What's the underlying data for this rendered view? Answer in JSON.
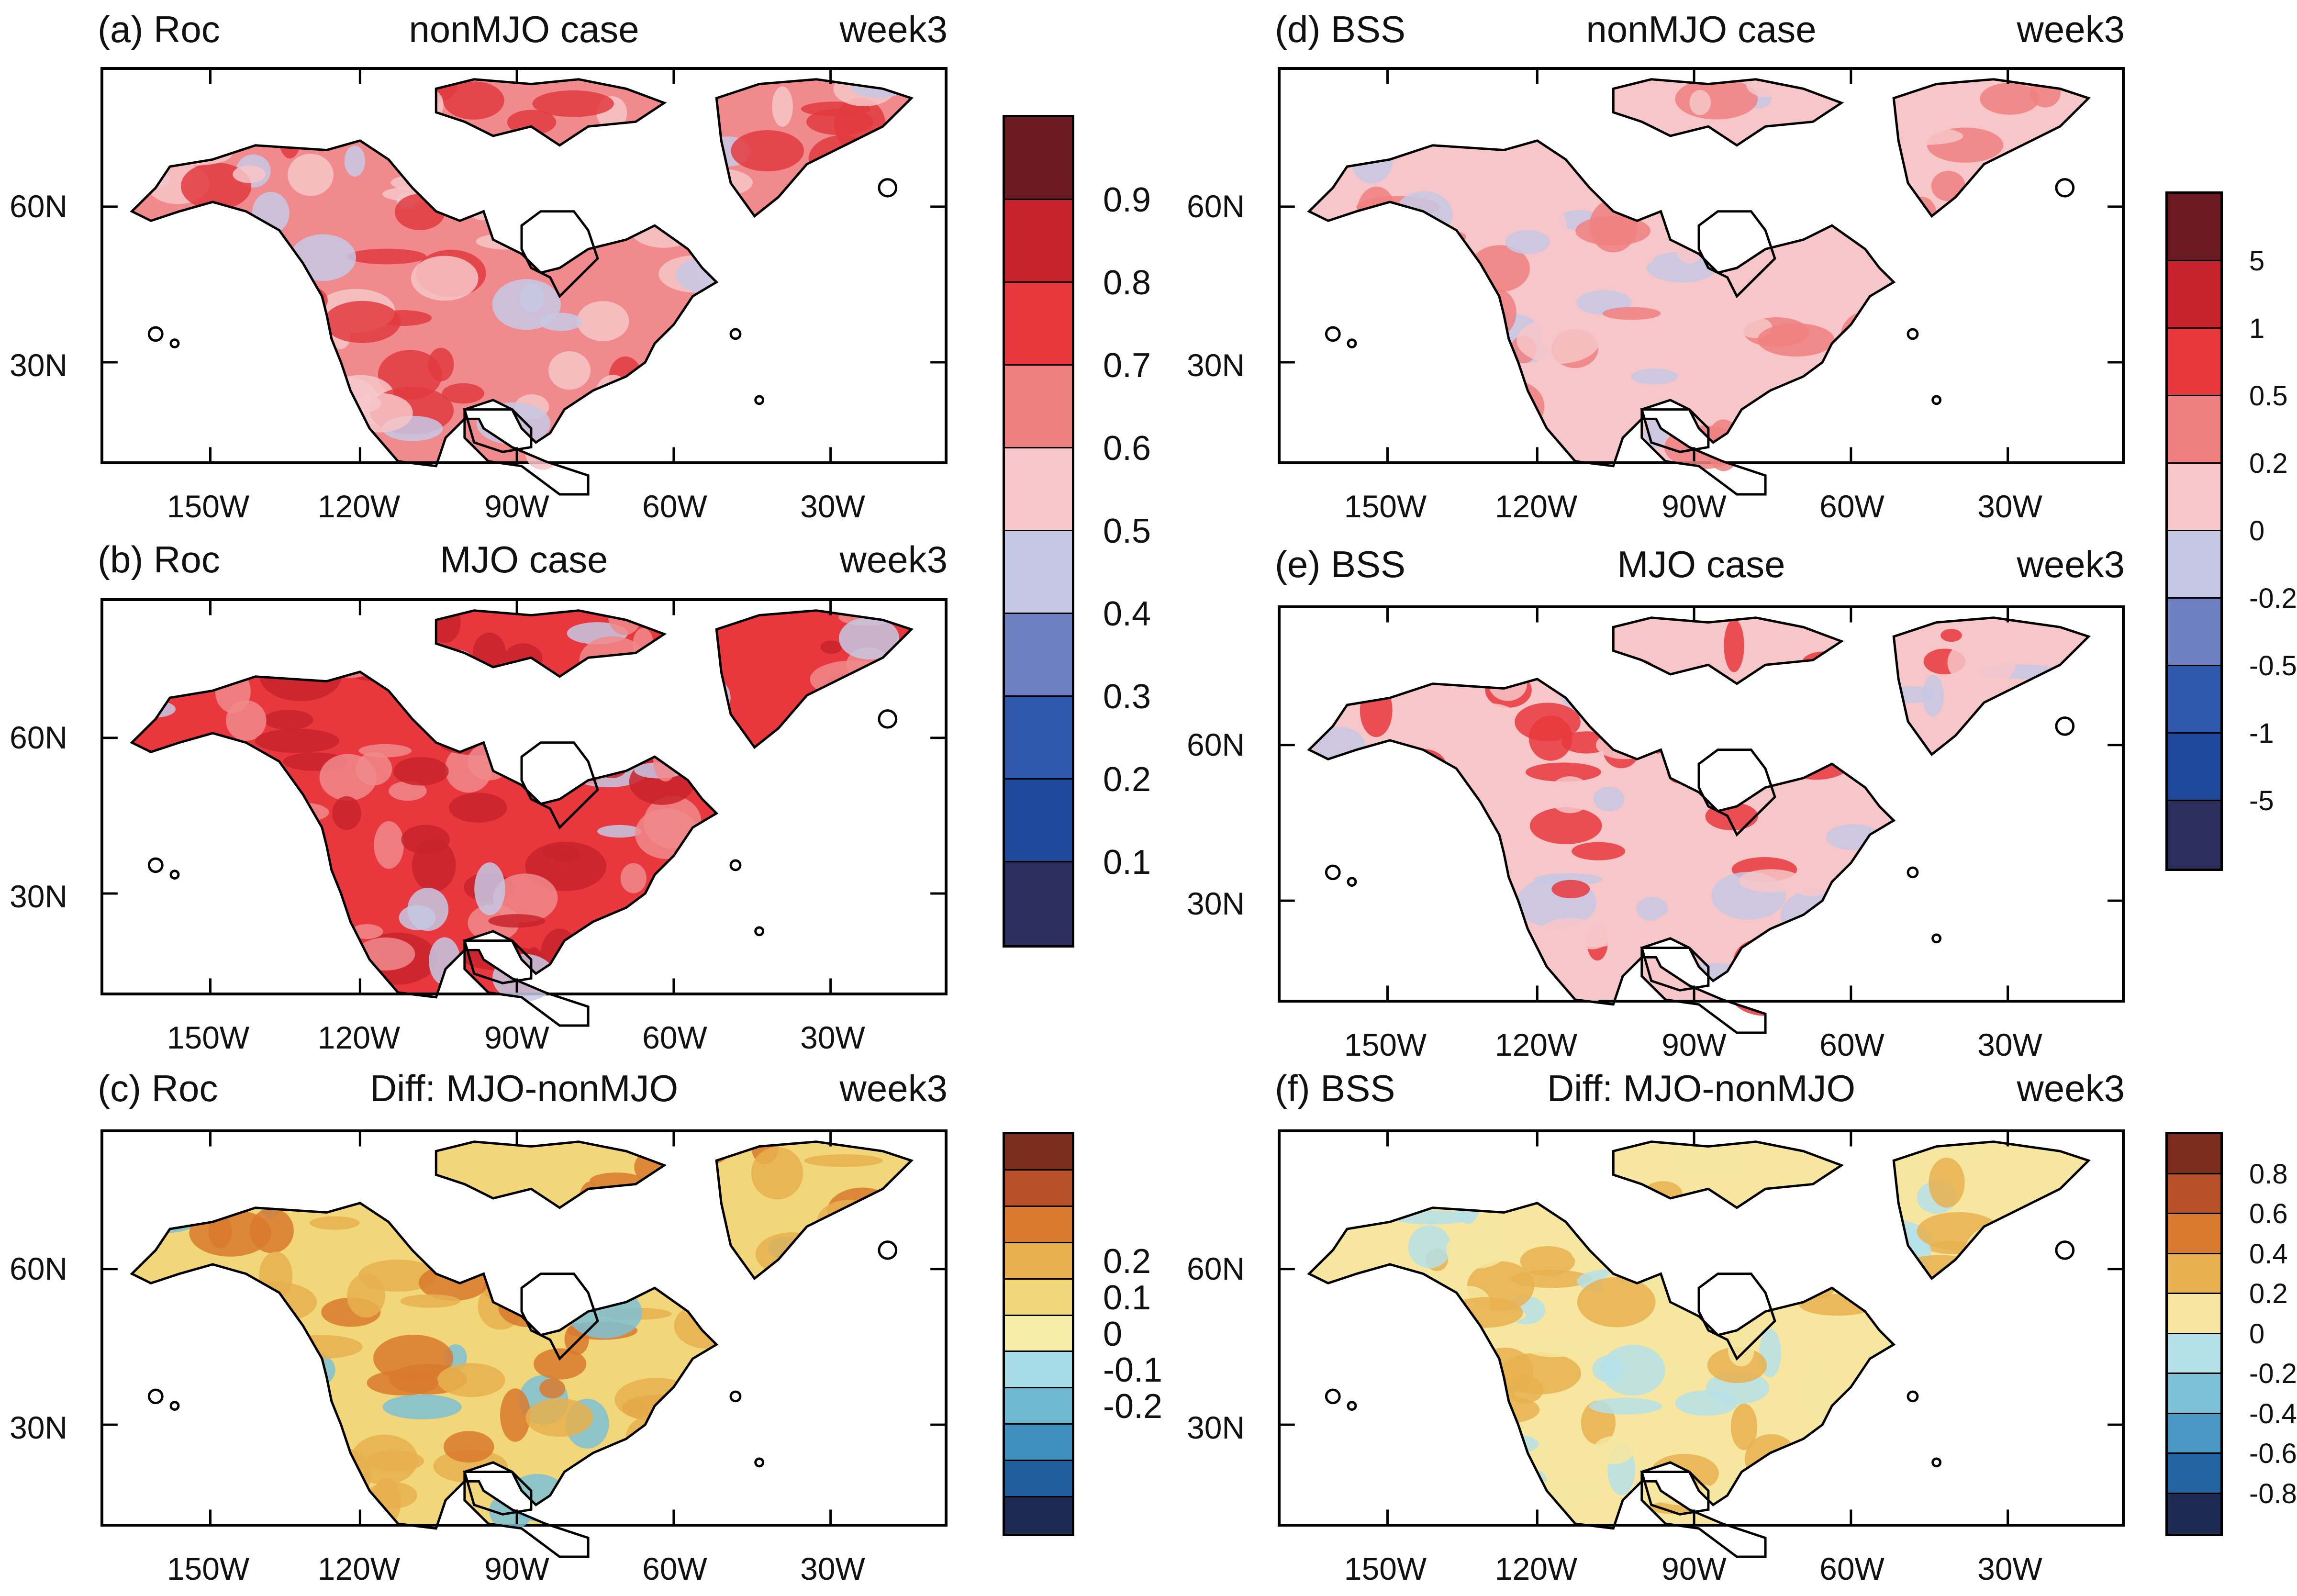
{
  "panels": {
    "a": {
      "label": "(a) Roc",
      "case": "nonMJO case",
      "week": "week3"
    },
    "b": {
      "label": "(b) Roc",
      "case": "MJO case",
      "week": "week3"
    },
    "c": {
      "label": "(c) Roc",
      "case": "Diff: MJO-nonMJO",
      "week": "week3"
    },
    "d": {
      "label": "(d) BSS",
      "case": "nonMJO case",
      "week": "week3"
    },
    "e": {
      "label": "(e) BSS",
      "case": "MJO case",
      "week": "week3"
    },
    "f": {
      "label": "(f) BSS",
      "case": "Diff: MJO-nonMJO",
      "week": "week3"
    }
  },
  "axes": {
    "lat_labels": [
      "60N",
      "30N"
    ],
    "lon_labels": [
      "150W",
      "120W",
      "90W",
      "60W",
      "30W"
    ]
  },
  "colorbars": {
    "roc": {
      "labels": [
        "0.9",
        "0.8",
        "0.7",
        "0.6",
        "0.5",
        "0.4",
        "0.3",
        "0.2",
        "0.1"
      ],
      "colors": [
        "#6b1a21",
        "#c8232c",
        "#e8383d",
        "#f08080",
        "#f7c6c8",
        "#c5c8e4",
        "#6f80c0",
        "#3059ab",
        "#1f4a9b",
        "#2c2f5e"
      ]
    },
    "roc_diff": {
      "labels": [
        "0.2",
        "0.1",
        "0",
        "-0.1",
        "-0.2"
      ],
      "colors": [
        "#7b2e1d",
        "#b9502a",
        "#d97a2e",
        "#e8b04f",
        "#f2d67a",
        "#f6ecaa",
        "#a7dbe6",
        "#6fb8d2",
        "#3f8fbf",
        "#205e9e",
        "#1e2a52"
      ]
    },
    "bss": {
      "labels": [
        "5",
        "1",
        "0.5",
        "0.2",
        "0",
        "-0.2",
        "-0.5",
        "-1",
        "-5"
      ],
      "colors": [
        "#6b1a21",
        "#c8232c",
        "#e8383d",
        "#f08080",
        "#f7c6c8",
        "#c5c8e4",
        "#6f80c0",
        "#3059ab",
        "#1f4a9b",
        "#2c2f5e"
      ]
    },
    "bss_diff": {
      "labels": [
        "0.8",
        "0.6",
        "0.4",
        "0.2",
        "0",
        "-0.2",
        "-0.4",
        "-0.6",
        "-0.8"
      ],
      "colors": [
        "#7b2e1d",
        "#b9502a",
        "#d97a2e",
        "#e8b04f",
        "#f6e6a0",
        "#b5e0ea",
        "#7cc0d6",
        "#4a98c3",
        "#2365a3",
        "#1e2a52"
      ]
    }
  },
  "fills": {
    "roc_nonmjo": {
      "land": "#f08a8c",
      "hot": "#e23b40",
      "warm": "#f7c6c8",
      "cool": "#c5c8e4"
    },
    "roc_mjo": {
      "land": "#e8383d",
      "hot": "#c8232c",
      "warm": "#f08a8c",
      "cool": "#c5c8e4"
    },
    "roc_diff": {
      "land": "#f2d67a",
      "hot": "#d97a2e",
      "warm": "#e8b04f",
      "cool": "#7cc0d6"
    },
    "bss_nonmjo": {
      "land": "#f7c6c8",
      "hot": "#f08080",
      "warm": "#f7c6c8",
      "cool": "#c5c8e4"
    },
    "bss_mjo": {
      "land": "#f7c6c8",
      "hot": "#e8383d",
      "warm": "#f7c6c8",
      "cool": "#c5c8e4"
    },
    "bss_diff": {
      "land": "#f6e6a0",
      "hot": "#e8b04f",
      "warm": "#f6e6a0",
      "cool": "#b5e0ea"
    }
  }
}
